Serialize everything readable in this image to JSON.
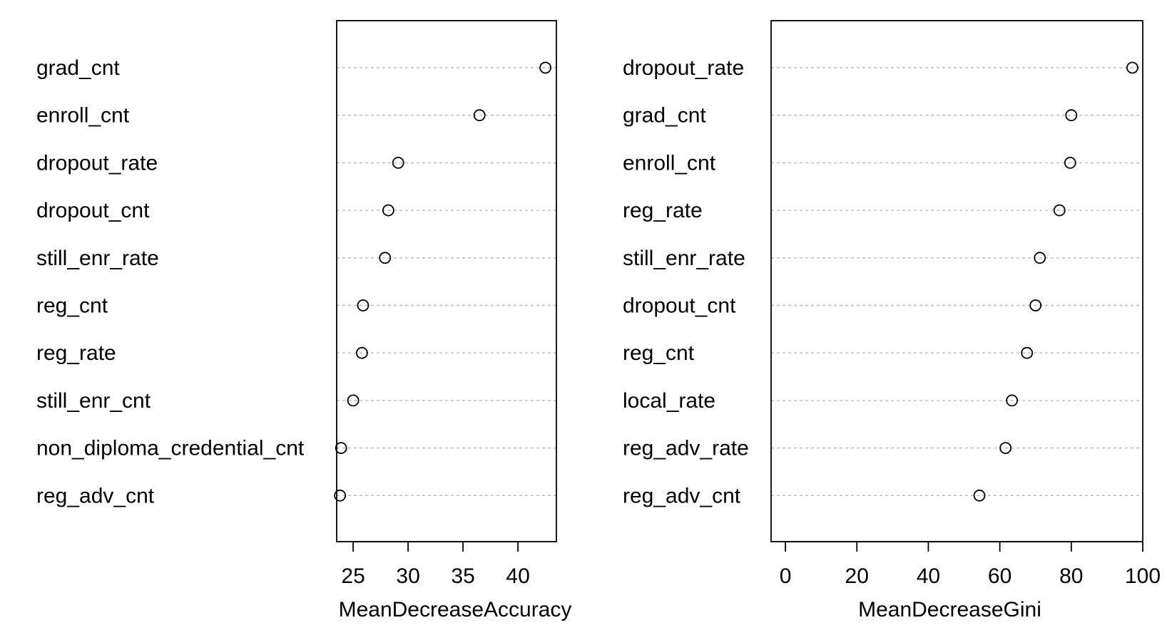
{
  "chart_data": [
    {
      "type": "scatter",
      "xlabel": "MeanDecreaseAccuracy",
      "xlim": [
        23.5,
        43.5
      ],
      "xticks": [
        25,
        30,
        35,
        40
      ],
      "grid": "horizontal dotted",
      "points": [
        {
          "label": "grad_cnt",
          "value": 42.5
        },
        {
          "label": "enroll_cnt",
          "value": 36.5
        },
        {
          "label": "dropout_rate",
          "value": 29.1
        },
        {
          "label": "dropout_cnt",
          "value": 28.2
        },
        {
          "label": "still_enr_rate",
          "value": 27.9
        },
        {
          "label": "reg_cnt",
          "value": 25.9
        },
        {
          "label": "reg_rate",
          "value": 25.8
        },
        {
          "label": "still_enr_cnt",
          "value": 25.0
        },
        {
          "label": "non_diploma_credential_cnt",
          "value": 23.9
        },
        {
          "label": "reg_adv_cnt",
          "value": 23.8
        }
      ]
    },
    {
      "type": "scatter",
      "xlabel": "MeanDecreaseGini",
      "xlim": [
        -4,
        100
      ],
      "xticks": [
        0,
        20,
        40,
        60,
        80,
        100
      ],
      "grid": "horizontal dotted",
      "points": [
        {
          "label": "dropout_rate",
          "value": 97.1
        },
        {
          "label": "grad_cnt",
          "value": 80.0
        },
        {
          "label": "enroll_cnt",
          "value": 79.7
        },
        {
          "label": "reg_rate",
          "value": 76.7
        },
        {
          "label": "still_enr_rate",
          "value": 71.2
        },
        {
          "label": "dropout_cnt",
          "value": 70.0
        },
        {
          "label": "reg_cnt",
          "value": 67.6
        },
        {
          "label": "local_rate",
          "value": 63.4
        },
        {
          "label": "reg_adv_rate",
          "value": 61.6
        },
        {
          "label": "reg_adv_cnt",
          "value": 54.3
        }
      ]
    }
  ]
}
